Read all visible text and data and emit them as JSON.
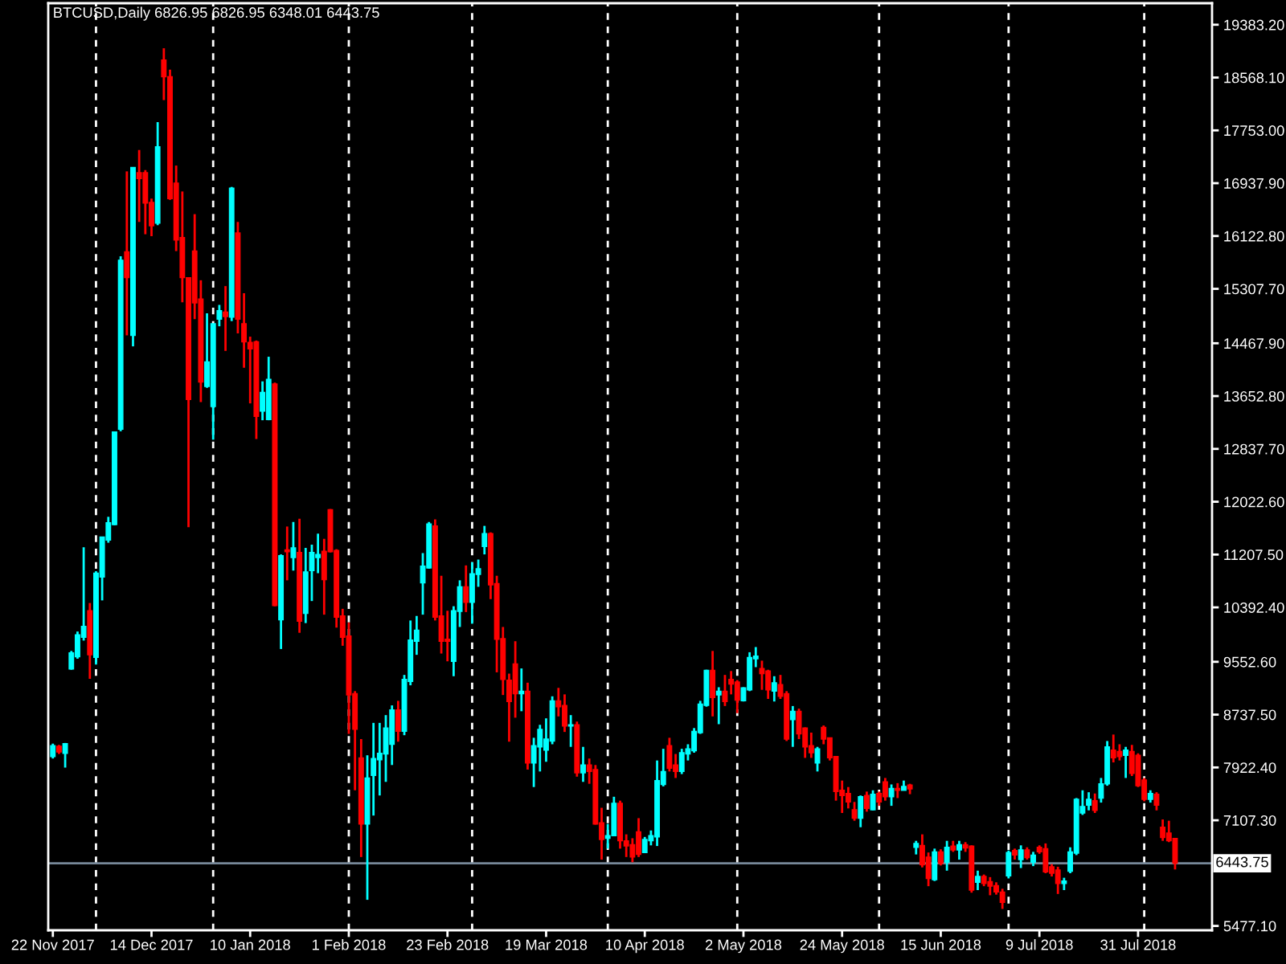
{
  "chart_data": {
    "type": "candlestick",
    "title": "BTCUSD,Daily 6826.95 6826.95 6348.01 6443.75",
    "categories": [
      "22 Nov 2017",
      null,
      null,
      null,
      null,
      null,
      null,
      null,
      null,
      null,
      null,
      null,
      null,
      null,
      null,
      null,
      "14 Dec 2017",
      null,
      null,
      null,
      null,
      null,
      null,
      null,
      null,
      null,
      null,
      null,
      null,
      null,
      null,
      null,
      "10 Jan 2018",
      null,
      null,
      null,
      null,
      null,
      null,
      null,
      null,
      null,
      null,
      null,
      null,
      null,
      null,
      null,
      "1 Feb 2018",
      null,
      null,
      null,
      null,
      null,
      null,
      null,
      null,
      null,
      null,
      null,
      null,
      null,
      null,
      null,
      "23 Feb 2018",
      null,
      null,
      null,
      null,
      null,
      null,
      null,
      null,
      null,
      null,
      null,
      null,
      null,
      null,
      null,
      "19 Mar 2018",
      null,
      null,
      null,
      null,
      null,
      null,
      null,
      null,
      null,
      null,
      null,
      null,
      null,
      null,
      null,
      "10 Apr 2018",
      null,
      null,
      null,
      null,
      null,
      null,
      null,
      null,
      null,
      null,
      null,
      null,
      null,
      null,
      null,
      "2 May 2018",
      null,
      null,
      null,
      null,
      null,
      null,
      null,
      null,
      null,
      null,
      null,
      null,
      null,
      null,
      null,
      "24 May 2018",
      null,
      null,
      null,
      null,
      null,
      null,
      null,
      null,
      null,
      null,
      null,
      null,
      null,
      null,
      null,
      "15 Jun 2018",
      null,
      null,
      null,
      null,
      null,
      null,
      null,
      null,
      null,
      null,
      null,
      null,
      null,
      null,
      null,
      "9 Jul 2018",
      null,
      null,
      null,
      null,
      null,
      null,
      null,
      null,
      null,
      null,
      null,
      null,
      null,
      null,
      null,
      "31 Jul 2018",
      null,
      null,
      null,
      null,
      null,
      null
    ],
    "ohlc": [
      [
        8090,
        8290,
        8060,
        8260
      ],
      [
        8250,
        8270,
        8130,
        8160
      ],
      [
        8140,
        8300,
        7920,
        8290
      ],
      [
        9440,
        9720,
        9430,
        9690
      ],
      [
        9630,
        10020,
        9600,
        9970
      ],
      [
        9930,
        11320,
        9880,
        10100
      ],
      [
        10340,
        10460,
        9290,
        9660
      ],
      [
        9620,
        10950,
        9510,
        10920
      ],
      [
        10860,
        11480,
        10500,
        11480
      ],
      [
        11430,
        11790,
        11390,
        11700
      ],
      [
        11670,
        13100,
        11660,
        13100
      ],
      [
        13140,
        15810,
        13110,
        15750
      ],
      [
        15880,
        17120,
        14590,
        15480
      ],
      [
        14590,
        17180,
        14420,
        17180
      ],
      [
        17100,
        17450,
        16340,
        17010
      ],
      [
        17100,
        17140,
        16150,
        16630
      ],
      [
        16640,
        16700,
        16120,
        16280
      ],
      [
        16320,
        17880,
        16290,
        17500
      ],
      [
        18840,
        19020,
        18220,
        18580
      ],
      [
        18580,
        18690,
        16680,
        16700
      ],
      [
        16940,
        17210,
        15890,
        16060
      ],
      [
        16100,
        16810,
        15100,
        15480
      ],
      [
        15480,
        15480,
        11630,
        13600
      ],
      [
        15890,
        16460,
        14840,
        15090
      ],
      [
        15150,
        15440,
        13560,
        13870
      ],
      [
        13800,
        14930,
        13780,
        14180
      ],
      [
        13490,
        14770,
        12980,
        14770
      ],
      [
        14840,
        15060,
        14730,
        14970
      ],
      [
        14950,
        15350,
        14350,
        14880
      ],
      [
        14870,
        16880,
        14810,
        16860
      ],
      [
        16170,
        16340,
        14620,
        14840
      ],
      [
        14770,
        15240,
        14090,
        14490
      ],
      [
        14480,
        14570,
        13540,
        14380
      ],
      [
        14490,
        14510,
        12990,
        13340
      ],
      [
        13420,
        13880,
        13280,
        13710
      ],
      [
        13290,
        14260,
        13280,
        13910
      ],
      [
        13840,
        13860,
        10410,
        10420
      ],
      [
        10200,
        11210,
        9750,
        11190
      ],
      [
        11280,
        11640,
        10810,
        11250
      ],
      [
        11160,
        11710,
        10960,
        11310
      ],
      [
        11240,
        11760,
        10000,
        10180
      ],
      [
        10300,
        11310,
        10150,
        10940
      ],
      [
        10960,
        11360,
        10490,
        11240
      ],
      [
        11160,
        11530,
        10920,
        11210
      ],
      [
        11260,
        11450,
        10280,
        10820
      ],
      [
        11900,
        11910,
        11240,
        11250
      ],
      [
        11270,
        11290,
        10080,
        10240
      ],
      [
        10260,
        10370,
        9800,
        9930
      ],
      [
        9950,
        10160,
        8440,
        9040
      ],
      [
        9060,
        9100,
        7570,
        8510
      ],
      [
        8070,
        8360,
        6540,
        7050
      ],
      [
        7050,
        8110,
        5880,
        7760
      ],
      [
        7800,
        8610,
        7180,
        8060
      ],
      [
        8040,
        8610,
        7490,
        8140
      ],
      [
        8130,
        8730,
        7700,
        8530
      ],
      [
        8280,
        8880,
        7960,
        8810
      ],
      [
        8810,
        8950,
        8320,
        8480
      ],
      [
        8480,
        9350,
        8420,
        9280
      ],
      [
        9250,
        10190,
        9190,
        9890
      ],
      [
        9870,
        10260,
        9660,
        10040
      ],
      [
        10770,
        11230,
        10280,
        11030
      ],
      [
        11000,
        11710,
        10990,
        11680
      ],
      [
        11650,
        11750,
        10190,
        10240
      ],
      [
        10260,
        10880,
        9680,
        9870
      ],
      [
        9900,
        10340,
        9560,
        9870
      ],
      [
        9560,
        10410,
        9330,
        10340
      ],
      [
        10330,
        10810,
        10090,
        10710
      ],
      [
        10710,
        11040,
        10320,
        10470
      ],
      [
        10470,
        11090,
        10140,
        10910
      ],
      [
        10900,
        11130,
        10710,
        10990
      ],
      [
        11330,
        11650,
        11210,
        11530
      ],
      [
        11530,
        11550,
        10520,
        10740
      ],
      [
        10760,
        10880,
        9390,
        9900
      ],
      [
        9910,
        10090,
        9040,
        9280
      ],
      [
        9270,
        9370,
        8320,
        8940
      ],
      [
        9520,
        9870,
        8690,
        9060
      ],
      [
        9060,
        9450,
        8790,
        9100
      ],
      [
        9100,
        9230,
        7890,
        7990
      ],
      [
        7990,
        8380,
        7620,
        8260
      ],
      [
        8240,
        8580,
        7860,
        8510
      ],
      [
        8190,
        8680,
        8010,
        8360
      ],
      [
        8330,
        9020,
        8280,
        8950
      ],
      [
        8950,
        9150,
        8710,
        8860
      ],
      [
        8880,
        9050,
        8470,
        8560
      ],
      [
        8560,
        8730,
        8240,
        8580
      ],
      [
        8580,
        8630,
        7780,
        7840
      ],
      [
        7840,
        8240,
        7700,
        7960
      ],
      [
        7960,
        8060,
        7670,
        7860
      ],
      [
        7890,
        7960,
        7040,
        7050
      ],
      [
        7070,
        7300,
        6500,
        6810
      ],
      [
        6830,
        7050,
        6670,
        6870
      ],
      [
        6870,
        7470,
        6860,
        7370
      ],
      [
        7370,
        7410,
        6670,
        6790
      ],
      [
        6790,
        6890,
        6540,
        6710
      ],
      [
        6730,
        6830,
        6460,
        6540
      ],
      [
        6930,
        7140,
        6540,
        6580
      ],
      [
        6610,
        6850,
        6600,
        6810
      ],
      [
        6790,
        6950,
        6720,
        6870
      ],
      [
        6850,
        8030,
        6710,
        7720
      ],
      [
        7660,
        8210,
        7630,
        7860
      ],
      [
        8260,
        8380,
        7860,
        7910
      ],
      [
        7960,
        8130,
        7760,
        7860
      ],
      [
        7860,
        8210,
        7820,
        8150
      ],
      [
        8130,
        8280,
        8030,
        8210
      ],
      [
        8180,
        8530,
        8150,
        8480
      ],
      [
        8460,
        8950,
        8440,
        8900
      ],
      [
        8880,
        9430,
        8860,
        9420
      ],
      [
        9420,
        9720,
        8710,
        9000
      ],
      [
        9040,
        9160,
        8590,
        9100
      ],
      [
        9100,
        9350,
        8870,
        8940
      ],
      [
        9280,
        9410,
        9050,
        9210
      ],
      [
        9240,
        9270,
        8760,
        8960
      ],
      [
        8950,
        9160,
        8940,
        9150
      ],
      [
        9120,
        9700,
        9100,
        9620
      ],
      [
        9600,
        9780,
        9470,
        9640
      ],
      [
        9450,
        9570,
        9120,
        9370
      ],
      [
        9410,
        9430,
        8980,
        9120
      ],
      [
        9100,
        9330,
        8940,
        9230
      ],
      [
        9200,
        9350,
        8980,
        9020
      ],
      [
        9060,
        9100,
        8330,
        8360
      ],
      [
        8660,
        8870,
        8240,
        8790
      ],
      [
        8790,
        8830,
        8360,
        8440
      ],
      [
        8530,
        8540,
        8070,
        8240
      ],
      [
        8260,
        8460,
        8070,
        8150
      ],
      [
        7990,
        8240,
        7860,
        8210
      ],
      [
        8540,
        8570,
        8280,
        8360
      ],
      [
        8380,
        8380,
        8030,
        8070
      ],
      [
        8090,
        8090,
        7410,
        7550
      ],
      [
        7570,
        7720,
        7220,
        7490
      ],
      [
        7520,
        7620,
        7290,
        7390
      ],
      [
        7270,
        7390,
        7100,
        7140
      ],
      [
        7140,
        7490,
        7000,
        7470
      ],
      [
        7490,
        7550,
        7240,
        7290
      ],
      [
        7270,
        7570,
        7260,
        7510
      ],
      [
        7520,
        7550,
        7330,
        7390
      ],
      [
        7700,
        7760,
        7410,
        7470
      ],
      [
        7470,
        7660,
        7330,
        7600
      ],
      [
        7600,
        7680,
        7450,
        7570
      ],
      [
        7570,
        7720,
        7570,
        7630
      ],
      [
        7650,
        7670,
        7510,
        7590
      ],
      [
        6690,
        6790,
        6580,
        6750
      ],
      [
        6720,
        6890,
        6380,
        6420
      ],
      [
        6540,
        6610,
        6090,
        6210
      ],
      [
        6190,
        6670,
        6170,
        6620
      ],
      [
        6620,
        6660,
        6410,
        6440
      ],
      [
        6460,
        6790,
        6330,
        6690
      ],
      [
        6710,
        6790,
        6620,
        6650
      ],
      [
        6650,
        6790,
        6500,
        6730
      ],
      [
        6730,
        6770,
        6620,
        6680
      ],
      [
        6710,
        6720,
        5990,
        6030
      ],
      [
        6150,
        6330,
        6030,
        6240
      ],
      [
        6240,
        6270,
        6090,
        6130
      ],
      [
        6160,
        6230,
        5950,
        6090
      ],
      [
        6100,
        6150,
        5960,
        6000
      ],
      [
        6000,
        6050,
        5740,
        5840
      ],
      [
        6250,
        6640,
        6210,
        6610
      ],
      [
        6640,
        6670,
        6500,
        6570
      ],
      [
        6500,
        6720,
        6370,
        6650
      ],
      [
        6650,
        6690,
        6500,
        6530
      ],
      [
        6460,
        6620,
        6400,
        6570
      ],
      [
        6690,
        6720,
        6590,
        6620
      ],
      [
        6670,
        6750,
        6290,
        6310
      ],
      [
        6390,
        6430,
        6240,
        6290
      ],
      [
        6340,
        6390,
        5970,
        6130
      ],
      [
        6130,
        6220,
        6030,
        6170
      ],
      [
        6320,
        6690,
        6290,
        6620
      ],
      [
        6600,
        7450,
        6570,
        7430
      ],
      [
        7220,
        7570,
        7190,
        7320
      ],
      [
        7340,
        7540,
        7260,
        7430
      ],
      [
        7410,
        7520,
        7220,
        7260
      ],
      [
        7450,
        7760,
        7380,
        7670
      ],
      [
        7670,
        8330,
        7640,
        8240
      ],
      [
        8190,
        8430,
        8000,
        8070
      ],
      [
        8170,
        8280,
        8030,
        8090
      ],
      [
        8110,
        8240,
        7760,
        8190
      ],
      [
        8170,
        8270,
        7790,
        7830
      ],
      [
        8110,
        8140,
        7620,
        7640
      ],
      [
        7730,
        7760,
        7400,
        7430
      ],
      [
        7430,
        7570,
        7380,
        7520
      ],
      [
        7510,
        7540,
        7260,
        7340
      ],
      [
        7000,
        7120,
        6790,
        6840
      ],
      [
        6910,
        7100,
        6770,
        6790
      ],
      [
        6826.95,
        6826.95,
        6348.01,
        6443.75
      ]
    ],
    "colors": [
      "#00ffff",
      "#ff0000",
      "#00ffff",
      "#00ffff",
      "#00ffff",
      "#00ffff",
      "#ff0000",
      "#00ffff",
      "#00ffff",
      "#00ffff",
      "#00ffff",
      "#00ffff",
      "#ff0000",
      "#00ffff",
      "#ff0000",
      "#ff0000",
      "#ff0000",
      "#00ffff",
      "#ff0000",
      "#ff0000",
      "#ff0000",
      "#ff0000",
      "#ff0000",
      "#ff0000",
      "#ff0000",
      "#00ffff",
      "#00ffff",
      "#00ffff",
      "#ff0000",
      "#00ffff",
      "#ff0000",
      "#ff0000",
      "#ff0000",
      "#ff0000",
      "#00ffff",
      "#00ffff",
      "#ff0000",
      "#00ffff",
      "#ff0000",
      "#00ffff",
      "#ff0000",
      "#00ffff",
      "#00ffff",
      "#00ffff",
      "#ff0000",
      "#ff0000",
      "#ff0000",
      "#ff0000",
      "#ff0000",
      "#ff0000",
      "#ff0000",
      "#00ffff",
      "#00ffff",
      "#00ffff",
      "#00ffff",
      "#00ffff",
      "#ff0000",
      "#00ffff",
      "#00ffff",
      "#00ffff",
      "#00ffff",
      "#00ffff",
      "#ff0000",
      "#ff0000",
      "#ff0000",
      "#00ffff",
      "#00ffff",
      "#ff0000",
      "#00ffff",
      "#00ffff",
      "#00ffff",
      "#ff0000",
      "#ff0000",
      "#ff0000",
      "#ff0000",
      "#ff0000",
      "#00ffff",
      "#ff0000",
      "#00ffff",
      "#00ffff",
      "#00ffff",
      "#00ffff",
      "#ff0000",
      "#ff0000",
      "#00ffff",
      "#ff0000",
      "#00ffff",
      "#ff0000",
      "#ff0000",
      "#ff0000",
      "#00ffff",
      "#00ffff",
      "#ff0000",
      "#ff0000",
      "#ff0000",
      "#ff0000",
      "#00ffff",
      "#00ffff",
      "#00ffff",
      "#00ffff",
      "#ff0000",
      "#ff0000",
      "#00ffff",
      "#00ffff",
      "#00ffff",
      "#00ffff",
      "#00ffff",
      "#ff0000",
      "#00ffff",
      "#ff0000",
      "#ff0000",
      "#ff0000",
      "#00ffff",
      "#00ffff",
      "#00ffff",
      "#ff0000",
      "#ff0000",
      "#00ffff",
      "#ff0000",
      "#ff0000",
      "#00ffff",
      "#ff0000",
      "#ff0000",
      "#ff0000",
      "#00ffff",
      "#ff0000",
      "#ff0000",
      "#ff0000",
      "#ff0000",
      "#ff0000",
      "#ff0000",
      "#00ffff",
      "#ff0000",
      "#00ffff",
      "#ff0000",
      "#ff0000",
      "#00ffff",
      "#ff0000",
      "#00ffff",
      "#ff0000",
      "#00ffff",
      "#ff0000",
      "#ff0000",
      "#00ffff",
      "#ff0000",
      "#00ffff",
      "#ff0000",
      "#00ffff",
      "#ff0000",
      "#ff0000",
      "#00ffff",
      "#ff0000",
      "#ff0000",
      "#ff0000",
      "#ff0000",
      "#00ffff",
      "#ff0000",
      "#00ffff",
      "#ff0000",
      "#00ffff",
      "#ff0000",
      "#ff0000",
      "#ff0000",
      "#ff0000",
      "#00ffff",
      "#00ffff",
      "#00ffff",
      "#00ffff",
      "#00ffff",
      "#ff0000",
      "#00ffff",
      "#00ffff",
      "#ff0000",
      "#ff0000",
      "#00ffff",
      "#ff0000",
      "#ff0000",
      "#ff0000",
      "#00ffff",
      "#ff0000",
      "#ff0000",
      "#ff0000",
      "#ff0000"
    ],
    "ylim": [
      5410,
      19715
    ],
    "yticks": [
      {
        "value": 19383.2,
        "label": "19383.20"
      },
      {
        "value": 18568.1,
        "label": "18568.10"
      },
      {
        "value": 17753,
        "label": "17753.00"
      },
      {
        "value": 16937.9,
        "label": "16937.90"
      },
      {
        "value": 16122.8,
        "label": "16122.80"
      },
      {
        "value": 15307.7,
        "label": "15307.70"
      },
      {
        "value": 14467.9,
        "label": "14467.90"
      },
      {
        "value": 13652.8,
        "label": "13652.80"
      },
      {
        "value": 12837.7,
        "label": "12837.70"
      },
      {
        "value": 12022.6,
        "label": "12022.60"
      },
      {
        "value": 11207.5,
        "label": "11207.50"
      },
      {
        "value": 10392.4,
        "label": "10392.40"
      },
      {
        "value": 9552.6,
        "label": "9552.60"
      },
      {
        "value": 8737.5,
        "label": "8737.50"
      },
      {
        "value": 7922.4,
        "label": "7922.40"
      },
      {
        "value": 7107.3,
        "label": "7107.30"
      },
      {
        "value": 5477.1,
        "label": "5477.10"
      }
    ],
    "ref_lines": [
      {
        "axis": "y",
        "value": 6443.75,
        "label": "6443.75",
        "color": "#778899",
        "line_style": "solid"
      }
    ]
  }
}
